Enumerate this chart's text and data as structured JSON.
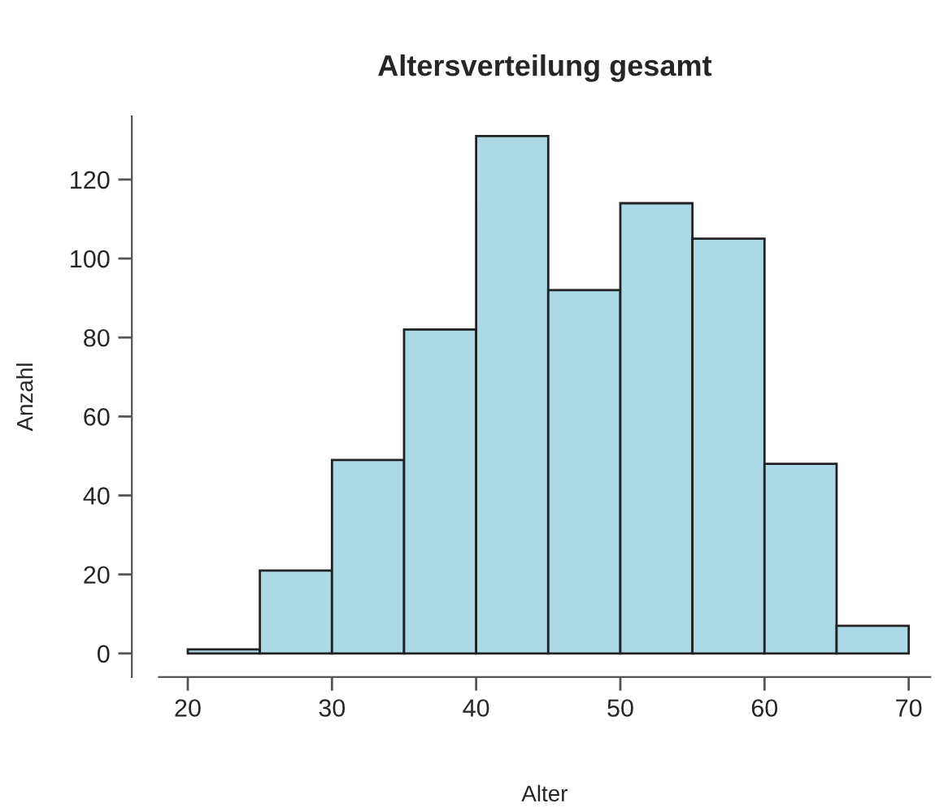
{
  "chart_data": {
    "type": "histogram",
    "title": "Altersverteilung gesamt",
    "xlabel": "Alter",
    "ylabel": "Anzahl",
    "bins": [
      20,
      25,
      30,
      35,
      40,
      45,
      50,
      55,
      60,
      65,
      70
    ],
    "values": [
      1,
      21,
      49,
      82,
      131,
      92,
      114,
      105,
      48,
      7
    ],
    "color": "#add8e6",
    "xlim": [
      18,
      71.5
    ],
    "xticks": [
      20,
      30,
      40,
      50,
      60,
      70
    ],
    "ylim": [
      -6,
      136
    ],
    "yticks": [
      0,
      20,
      40,
      60,
      80,
      100,
      120
    ],
    "grid": false
  }
}
